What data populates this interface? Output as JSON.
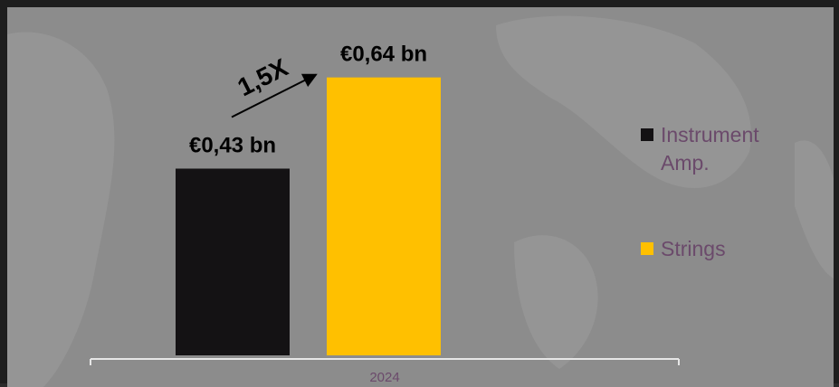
{
  "chart_data": {
    "type": "bar",
    "categories": [
      "2024"
    ],
    "series": [
      {
        "name": "Instrument Amp.",
        "values": [
          0.43
        ],
        "color": "#141214",
        "data_label": "€0,43 bn"
      },
      {
        "name": "Strings",
        "values": [
          0.64
        ],
        "color": "#ffc000",
        "data_label": "€0,64 bn"
      }
    ],
    "ylim": [
      0,
      0.76
    ],
    "grid": false,
    "legend_position": "right",
    "annotation": "1,5X"
  },
  "legend": {
    "items": [
      {
        "line1": "Instrument",
        "line2": "Amp."
      },
      {
        "line1": "Strings",
        "line2": ""
      }
    ]
  }
}
